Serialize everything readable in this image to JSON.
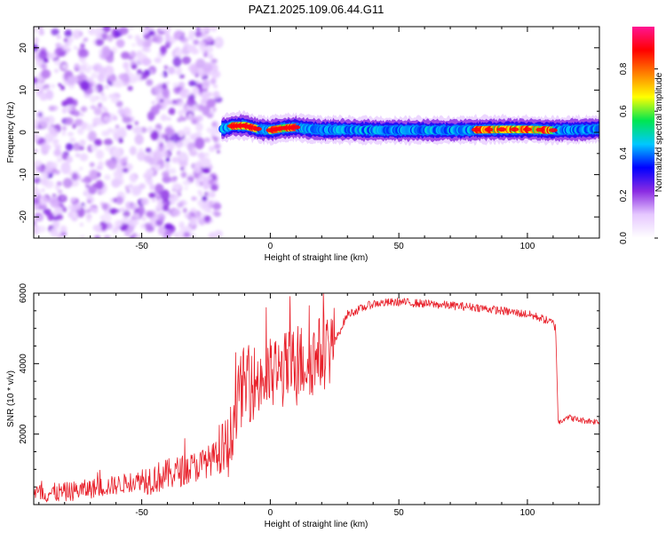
{
  "title": "PAZ1.2025.109.06.44.G11",
  "chart_data": [
    {
      "type": "heatmap",
      "title": "PAZ1.2025.109.06.44.G11",
      "xlabel": "Height of straight line (km)",
      "ylabel": "Frequency (Hz)",
      "xlim": [
        -92,
        128
      ],
      "ylim": [
        -25,
        25
      ],
      "x_ticks": [
        -50,
        0,
        50,
        100
      ],
      "y_ticks": [
        -20,
        -10,
        0,
        10,
        20
      ],
      "noise_region_x": [
        -92,
        -20
      ],
      "signal_band": {
        "x_start": -19,
        "x_end": 128,
        "center_frequency": [
          [
            -19,
            0.8
          ],
          [
            -15,
            1.5
          ],
          [
            -10,
            1.6
          ],
          [
            -5,
            0.8
          ],
          [
            0,
            0.5
          ],
          [
            5,
            1.0
          ],
          [
            10,
            1.2
          ],
          [
            15,
            0.8
          ],
          [
            20,
            0.6
          ],
          [
            30,
            0.6
          ],
          [
            40,
            0.5
          ],
          [
            50,
            0.5
          ],
          [
            60,
            0.5
          ],
          [
            70,
            0.5
          ],
          [
            80,
            0.6
          ],
          [
            90,
            0.7
          ],
          [
            100,
            0.7
          ],
          [
            110,
            0.5
          ],
          [
            120,
            0.6
          ],
          [
            128,
            0.8
          ]
        ],
        "peak_amplitude_regions": [
          [
            -15,
            -5
          ],
          [
            0,
            10
          ],
          [
            80,
            110
          ]
        ],
        "peak_amplitude": 0.95,
        "background_amplitude": 0.35
      },
      "colorbar": {
        "label": "Normalized spectral amplitude",
        "ticks": [
          0.0,
          0.2,
          0.4,
          0.6,
          0.8
        ],
        "range": [
          0,
          1
        ],
        "colors": [
          "#ffffff",
          "#e6c8ff",
          "#8a2be2",
          "#0000ff",
          "#00c8ff",
          "#00e650",
          "#ffff00",
          "#ff8000",
          "#ff0000",
          "#ff1493"
        ]
      }
    },
    {
      "type": "line",
      "xlabel": "Height of straight line (km)",
      "ylabel": "SNR (10 * v/v)",
      "xlim": [
        -92,
        128
      ],
      "ylim": [
        0,
        6000
      ],
      "x_ticks": [
        -50,
        0,
        50,
        100
      ],
      "y_ticks": [
        2000,
        4000,
        6000
      ],
      "series": [
        {
          "color": "#e8202a",
          "x": [
            -92,
            -80,
            -70,
            -60,
            -50,
            -45,
            -40,
            -35,
            -30,
            -25,
            -20,
            -16,
            -14,
            -12,
            -10,
            -5,
            0,
            5,
            10,
            15,
            20,
            25,
            30,
            40,
            50,
            60,
            70,
            80,
            90,
            100,
            105,
            110,
            111,
            112,
            115,
            120,
            128
          ],
          "y": [
            300,
            350,
            450,
            550,
            700,
            750,
            850,
            950,
            1050,
            1200,
            1400,
            1700,
            2500,
            3200,
            3400,
            3500,
            3650,
            3800,
            4000,
            4100,
            4300,
            4600,
            5400,
            5700,
            5750,
            5700,
            5650,
            5600,
            5500,
            5400,
            5300,
            5150,
            5000,
            2300,
            2500,
            2400,
            2350
          ]
        }
      ]
    }
  ]
}
